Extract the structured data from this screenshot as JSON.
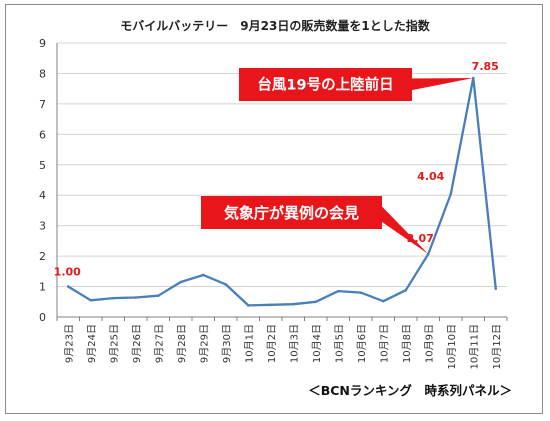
{
  "title": "モバイルバッテリー　9月23日の販売数量を1とした指数",
  "footer": "＜BCNランキング　時系列パネル＞",
  "colors": {
    "line": "#4a7ebb",
    "callout_fill": "#e8161b",
    "callout_text": "#ffffff",
    "data_label": "#e21a1a",
    "grid": "#d4d4d4",
    "axis": "#808080"
  },
  "annotations": [
    {
      "id": "typhoon",
      "text": "台風19号の上陸前日",
      "target_x": "10月11日"
    },
    {
      "id": "jma",
      "text": "気象庁が異例の会見",
      "target_x": "10月9日"
    }
  ],
  "chart_data": {
    "type": "line",
    "title": "モバイルバッテリー　9月23日の販売数量を1とした指数",
    "xlabel": "",
    "ylabel": "",
    "categories": [
      "9月23日",
      "9月24日",
      "9月25日",
      "9月26日",
      "9月27日",
      "9月28日",
      "9月29日",
      "9月30日",
      "10月1日",
      "10月2日",
      "10月3日",
      "10月4日",
      "10月5日",
      "10月6日",
      "10月7日",
      "10月8日",
      "10月9日",
      "10月10日",
      "10月11日",
      "10月12日"
    ],
    "values": [
      1.0,
      0.55,
      0.62,
      0.64,
      0.7,
      1.15,
      1.38,
      1.07,
      0.38,
      0.4,
      0.42,
      0.5,
      0.85,
      0.8,
      0.52,
      0.88,
      2.07,
      4.04,
      7.85,
      0.93
    ],
    "ylim": [
      0,
      9
    ],
    "yticks": [
      0,
      1,
      2,
      3,
      4,
      5,
      6,
      7,
      8,
      9
    ],
    "grid": true,
    "legend": "none",
    "data_labels": [
      {
        "x": "9月23日",
        "text": "1.00"
      },
      {
        "x": "10月9日",
        "text": "2.07"
      },
      {
        "x": "10月10日",
        "text": "4.04"
      },
      {
        "x": "10月11日",
        "text": "7.85"
      }
    ]
  }
}
